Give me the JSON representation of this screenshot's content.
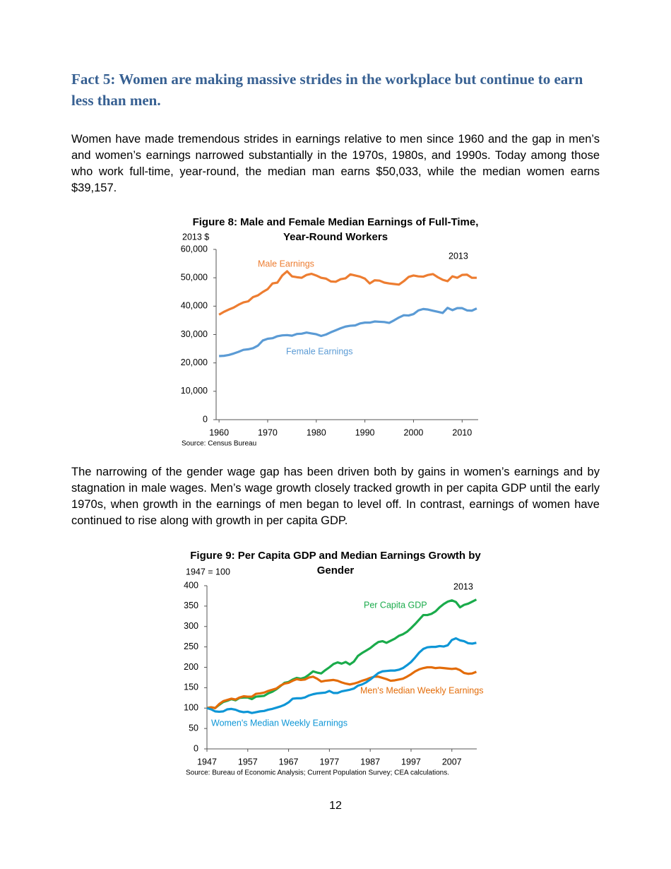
{
  "heading": "Fact 5: Women are making massive strides in the workplace but continue to earn less than men.",
  "paragraphs": [
    "Women have made tremendous strides in earnings relative to men since 1960 and the gap in men’s and women’s earnings narrowed substantially in the 1970s, 1980s, and 1990s. Today among those who work full-time, year-round, the median man earns $50,033, while the median women earns $39,157.",
    "The narrowing of the gender wage gap has been driven both by gains in women’s earnings and by stagnation in male wages. Men’s wage growth closely tracked growth in per capita GDP until the early 1970s, when growth in the earnings of men began to level off. In contrast, earnings of women have continued to rise along with growth in per capita GDP."
  ],
  "chart_data": [
    {
      "type": "line",
      "title": "Figure 8: Male and Female Median Earnings of Full-Time, Year-Round Workers",
      "y_label": "2013 $",
      "annotation": "2013",
      "source": "Source: Census Bureau",
      "x": [
        1960,
        1961,
        1962,
        1963,
        1964,
        1965,
        1966,
        1967,
        1968,
        1969,
        1970,
        1971,
        1972,
        1973,
        1974,
        1975,
        1976,
        1977,
        1978,
        1979,
        1980,
        1981,
        1982,
        1983,
        1984,
        1985,
        1986,
        1987,
        1988,
        1989,
        1990,
        1991,
        1992,
        1993,
        1994,
        1995,
        1996,
        1997,
        1998,
        1999,
        2000,
        2001,
        2002,
        2003,
        2004,
        2005,
        2006,
        2007,
        2008,
        2009,
        2010,
        2011,
        2012,
        2013
      ],
      "series": [
        {
          "name": "Male Earnings",
          "color": "#ed7d31",
          "values": [
            37000,
            38000,
            38800,
            39500,
            40500,
            41300,
            41700,
            43200,
            43800,
            45000,
            46000,
            48000,
            48300,
            50800,
            52300,
            50500,
            50200,
            50000,
            51000,
            51400,
            50800,
            50000,
            49700,
            48700,
            48600,
            49500,
            49800,
            51200,
            50800,
            50400,
            49700,
            48000,
            49100,
            49000,
            48300,
            48000,
            47800,
            47600,
            48800,
            50300,
            50800,
            50500,
            50400,
            51000,
            51300,
            50200,
            49300,
            48800,
            50500,
            50000,
            51000,
            51100,
            50000,
            50000
          ]
        },
        {
          "name": "Female Earnings",
          "color": "#5b9bd5",
          "values": [
            22400,
            22500,
            22800,
            23300,
            23900,
            24600,
            24800,
            25200,
            26100,
            27900,
            28500,
            28700,
            29400,
            29700,
            29800,
            29600,
            30200,
            30300,
            30700,
            30400,
            30100,
            29500,
            30000,
            30800,
            31500,
            32200,
            32800,
            33100,
            33200,
            33900,
            34200,
            34200,
            34600,
            34500,
            34400,
            34100,
            35000,
            36000,
            36800,
            36700,
            37200,
            38500,
            39000,
            38800,
            38400,
            38000,
            37600,
            39400,
            38600,
            39300,
            39300,
            38500,
            38400,
            39200
          ]
        }
      ],
      "xlim": [
        1959.4,
        2013.3
      ],
      "xticks": [
        1960,
        1970,
        1980,
        1990,
        2000,
        2010
      ],
      "ylim": [
        0,
        60000
      ],
      "yticks": [
        0,
        {
          "value": 10000,
          "label": "10,000"
        },
        {
          "value": 20000,
          "label": "20,000"
        },
        {
          "value": 30000,
          "label": "30,000"
        },
        {
          "value": 40000,
          "label": "40,000"
        },
        {
          "value": 50000,
          "label": "50,000"
        },
        {
          "value": 60000,
          "label": "60,000"
        }
      ]
    },
    {
      "type": "line",
      "title": "Figure 9: Per Capita GDP and Median Earnings Growth by Gender",
      "y_label": "1947 = 100",
      "annotation": "2013",
      "source": "Source: Bureau of Economic Analysis; Current Population Survey; CEA calculations.",
      "x": [
        1947,
        1948,
        1949,
        1950,
        1951,
        1952,
        1953,
        1954,
        1955,
        1956,
        1957,
        1958,
        1959,
        1960,
        1961,
        1962,
        1963,
        1964,
        1965,
        1966,
        1967,
        1968,
        1969,
        1970,
        1971,
        1972,
        1973,
        1974,
        1975,
        1976,
        1977,
        1978,
        1979,
        1980,
        1981,
        1982,
        1983,
        1984,
        1985,
        1986,
        1987,
        1988,
        1989,
        1990,
        1991,
        1992,
        1993,
        1994,
        1995,
        1996,
        1997,
        1998,
        1999,
        2000,
        2001,
        2002,
        2003,
        2004,
        2005,
        2006,
        2007,
        2008,
        2009,
        2010,
        2011,
        2012,
        2013
      ],
      "series": [
        {
          "name": "Per Capita GDP",
          "color": "#1aab4b",
          "values": [
            100,
            102,
            100,
            108,
            115,
            118,
            122,
            119,
            125,
            126,
            126,
            122,
            128,
            129,
            130,
            136,
            140,
            146,
            154,
            162,
            164,
            170,
            174,
            172,
            175,
            182,
            190,
            187,
            185,
            193,
            200,
            208,
            212,
            209,
            213,
            207,
            214,
            228,
            235,
            241,
            247,
            255,
            262,
            264,
            260,
            265,
            270,
            277,
            281,
            287,
            296,
            306,
            317,
            328,
            328,
            331,
            337,
            347,
            355,
            361,
            364,
            360,
            347,
            353,
            356,
            361,
            366
          ]
        },
        {
          "name": "Men's Median Weekly Earnings",
          "color": "#e36c09",
          "values": [
            100,
            102,
            100,
            110,
            117,
            120,
            123,
            121,
            126,
            129,
            128,
            128,
            135,
            136,
            138,
            142,
            145,
            148,
            155,
            160,
            162,
            167,
            171,
            169,
            170,
            175,
            177,
            172,
            165,
            167,
            168,
            169,
            167,
            163,
            160,
            158,
            160,
            163,
            167,
            170,
            174,
            177,
            177,
            174,
            171,
            167,
            168,
            170,
            172,
            177,
            183,
            190,
            195,
            198,
            200,
            200,
            198,
            199,
            198,
            197,
            196,
            197,
            193,
            186,
            184,
            185,
            189
          ]
        },
        {
          "name": "Women's Median Weekly Earnings",
          "color": "#0e96d6",
          "values": [
            100,
            97,
            92,
            91,
            92,
            97,
            98,
            96,
            92,
            90,
            91,
            88,
            90,
            92,
            93,
            96,
            98,
            101,
            104,
            108,
            114,
            123,
            124,
            124,
            126,
            131,
            134,
            136,
            137,
            138,
            142,
            137,
            137,
            141,
            143,
            145,
            148,
            155,
            158,
            163,
            170,
            178,
            186,
            190,
            191,
            192,
            192,
            194,
            198,
            205,
            213,
            224,
            236,
            245,
            249,
            250,
            250,
            252,
            251,
            254,
            267,
            271,
            266,
            264,
            259,
            258,
            260
          ]
        }
      ],
      "xlim": [
        1947,
        2013.1
      ],
      "xticks": [
        1947,
        1957,
        1967,
        1977,
        1987,
        1997,
        2007
      ],
      "ylim": [
        0,
        400
      ],
      "yticks": [
        0,
        50,
        100,
        150,
        200,
        250,
        300,
        350,
        400
      ]
    }
  ],
  "page_number": 12
}
